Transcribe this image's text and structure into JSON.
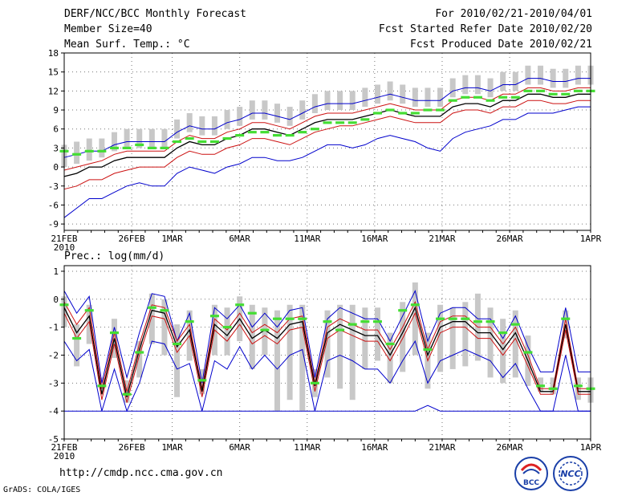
{
  "header": {
    "title": "DERF/NCC/BCC Monthly Forecast",
    "member_size": "Member Size=40",
    "variable": "Mean Surf. Temp.: °C",
    "period": "For 2010/02/21-2010/04/01",
    "started": "Fcst Started Refer Date 2010/02/20",
    "produced": "Fcst Produced Date 2010/02/21"
  },
  "footer": {
    "url": "http://cmdp.ncc.cma.gov.cn",
    "credit": "GrADS: COLA/IGES",
    "logo_bcc": "BCC",
    "logo_ncc": "NCC"
  },
  "colors": {
    "spread": "#c8c8c8",
    "observed": "#44dd33",
    "mean": "#000000",
    "inner": "#cc1111",
    "outer": "#0000cc"
  },
  "chart_data": [
    {
      "type": "line",
      "title": "Mean Surf. Temp.: °C",
      "ylim": [
        -10,
        18
      ],
      "yticks": [
        -9,
        -6,
        -3,
        0,
        3,
        6,
        9,
        12,
        15,
        18
      ],
      "xlabels": [
        "21FEB",
        "26FEB",
        "1MAR",
        "6MAR",
        "11MAR",
        "16MAR",
        "21MAR",
        "26MAR",
        "1APR"
      ],
      "xlabel_days": [
        0,
        5,
        8,
        13,
        18,
        23,
        28,
        33,
        39
      ],
      "year_label": "2010",
      "grid": true,
      "series": [
        {
          "name": "max",
          "values": [
            -8,
            -6.5,
            -5,
            -5,
            -4,
            -3,
            -2.5,
            -3,
            -3,
            -1,
            0,
            -0.5,
            -1,
            0,
            0.5,
            1.5,
            1.5,
            1,
            1,
            1.5,
            2.5,
            3.5,
            3.5,
            3,
            3.5,
            4.5,
            5,
            4.5,
            4,
            3,
            2.5,
            4.5,
            5.5,
            6,
            6.5,
            7.5,
            7.5,
            8.5,
            8.5,
            8.5,
            9,
            9.5,
            9.5
          ]
        },
        {
          "name": "upper_red",
          "values": [
            -3.5,
            -3,
            -2,
            -2,
            -1,
            -0.5,
            0,
            0,
            0,
            1.5,
            2.5,
            2,
            2,
            3,
            3.5,
            4.5,
            4.5,
            4,
            3.5,
            4.5,
            5.5,
            6,
            6.5,
            6.5,
            7,
            7.5,
            8,
            7.5,
            7,
            7,
            7,
            8.5,
            9,
            9,
            8.5,
            9.5,
            9.5,
            10.5,
            10.5,
            10,
            10,
            10.5,
            10.5
          ]
        },
        {
          "name": "mean",
          "values": [
            -1.5,
            -1,
            0,
            0,
            1,
            1.5,
            1.5,
            1.5,
            1.5,
            3,
            4,
            3.5,
            3.5,
            4.5,
            5,
            6,
            6,
            5.5,
            5,
            6,
            7,
            7.5,
            7.5,
            7.5,
            8,
            8.5,
            9,
            8.5,
            8,
            8,
            8,
            9.5,
            10,
            10,
            9.5,
            10.5,
            10.5,
            11.5,
            11.5,
            11,
            11,
            11.5,
            11.5
          ]
        },
        {
          "name": "lower_red",
          "values": [
            -0.5,
            0,
            0.5,
            1,
            2,
            2.5,
            2.5,
            2.5,
            2.5,
            4,
            5,
            4.5,
            4.5,
            5.5,
            6,
            7,
            7,
            6.5,
            6,
            7,
            8,
            8.5,
            8.5,
            8.5,
            9,
            9.5,
            10,
            9.5,
            9,
            9,
            9,
            10.5,
            11,
            11,
            10.5,
            11.5,
            11.5,
            12.5,
            12.5,
            12,
            12,
            12.5,
            12.5
          ]
        },
        {
          "name": "min",
          "values": [
            1.5,
            2,
            2.5,
            2.5,
            3.5,
            4,
            4,
            4,
            4,
            5.5,
            6.5,
            6,
            6,
            7,
            7.5,
            8.5,
            8.5,
            8,
            7.5,
            8.5,
            9.5,
            10,
            10,
            10,
            10.5,
            11,
            11.5,
            11,
            10.5,
            10.5,
            10.5,
            12,
            12.5,
            12.5,
            12,
            13,
            13,
            14,
            14,
            13.5,
            13.5,
            14,
            14
          ]
        }
      ],
      "observed": [
        2.5,
        2,
        2.5,
        2.5,
        3,
        3,
        3.5,
        3,
        3,
        4,
        4.5,
        4,
        4,
        4.5,
        5,
        5.5,
        5.5,
        5,
        5,
        5.5,
        6,
        7,
        7,
        7,
        7.5,
        8.5,
        9,
        8.5,
        8.5,
        9,
        9,
        10.5,
        11,
        11,
        10.5,
        11,
        11,
        12,
        12,
        11.5,
        11.5,
        12,
        12
      ],
      "spread_low": [
        0,
        0.5,
        1,
        1.5,
        2.5,
        3,
        3,
        3,
        3,
        4.5,
        5.5,
        5,
        5,
        6,
        6.5,
        7.5,
        7.5,
        7,
        6.5,
        7.5,
        8.5,
        9,
        9,
        9,
        9.5,
        10,
        10.5,
        10,
        9.5,
        9.5,
        9.5,
        11,
        11.5,
        11.5,
        11,
        12,
        12,
        13,
        13,
        12.5,
        12.5,
        13,
        13
      ],
      "spread_high": [
        3.5,
        4,
        4.5,
        4.5,
        5.5,
        6,
        6,
        6,
        6,
        7.5,
        8.5,
        8,
        8,
        9,
        9.5,
        10.5,
        10.5,
        10,
        9.5,
        10.5,
        11.5,
        12,
        12,
        12,
        12.5,
        13,
        13.5,
        13,
        12.5,
        12.5,
        12.5,
        14,
        14.5,
        14.5,
        14,
        15,
        15,
        16,
        16,
        15.5,
        15.5,
        16,
        16
      ]
    },
    {
      "type": "line",
      "title": "Prec.: log(mm/d)",
      "ylim": [
        -5,
        1.2
      ],
      "yticks": [
        -5,
        -4,
        -3,
        -2,
        -1,
        0,
        1
      ],
      "xlabels": [
        "21FEB",
        "26FEB",
        "1MAR",
        "6MAR",
        "11MAR",
        "16MAR",
        "21MAR",
        "26MAR",
        "1APR"
      ],
      "xlabel_days": [
        0,
        5,
        8,
        13,
        18,
        23,
        28,
        33,
        39
      ],
      "year_label": "2010",
      "grid": true,
      "series": [
        {
          "name": "max",
          "values": [
            0.3,
            -0.5,
            0.1,
            -3,
            -1,
            -2.8,
            -1.2,
            0.2,
            0.1,
            -1.5,
            -0.5,
            -3,
            -0.3,
            -0.7,
            -0.2,
            -1,
            -0.5,
            -1,
            -0.4,
            -0.3,
            -2.8,
            -0.7,
            -0.3,
            -0.5,
            -0.7,
            -0.7,
            -1.5,
            -0.6,
            0.3,
            -1.5,
            -0.5,
            -0.3,
            -0.3,
            -0.7,
            -0.7,
            -1.4,
            -0.6,
            -1.7,
            -2.6,
            -2.6,
            -0.3,
            -2.6,
            -2.6
          ]
        },
        {
          "name": "upper_red",
          "values": [
            -0.1,
            -0.9,
            -0.3,
            -3.2,
            -1.2,
            -3.3,
            -1.6,
            -0.2,
            -0.3,
            -1.5,
            -0.9,
            -3.2,
            -0.7,
            -1.1,
            -0.5,
            -1.2,
            -0.9,
            -1.2,
            -0.7,
            -0.6,
            -3,
            -1,
            -0.7,
            -0.9,
            -1.1,
            -1.1,
            -1.8,
            -1,
            -0.1,
            -1.8,
            -0.8,
            -0.6,
            -0.6,
            -1,
            -1,
            -1.6,
            -1,
            -2,
            -3.2,
            -3.2,
            -0.7,
            -3.2,
            -3.2
          ]
        },
        {
          "name": "mean",
          "values": [
            -0.3,
            -1.2,
            -0.6,
            -3.4,
            -1.4,
            -3.5,
            -1.8,
            -0.4,
            -0.5,
            -1.7,
            -1.1,
            -3.3,
            -0.9,
            -1.3,
            -0.7,
            -1.4,
            -1.1,
            -1.4,
            -0.9,
            -0.8,
            -3.1,
            -1.2,
            -0.9,
            -1.1,
            -1.3,
            -1.3,
            -2,
            -1.2,
            -0.3,
            -2,
            -1,
            -0.8,
            -0.8,
            -1.2,
            -1.2,
            -1.8,
            -1.2,
            -2.2,
            -3.3,
            -3.3,
            -0.9,
            -3.3,
            -3.3
          ]
        },
        {
          "name": "lower_red",
          "values": [
            -0.5,
            -1.4,
            -0.8,
            -3.6,
            -1.6,
            -3.7,
            -2,
            -0.6,
            -0.7,
            -1.9,
            -1.3,
            -3.5,
            -1.1,
            -1.5,
            -0.9,
            -1.6,
            -1.3,
            -1.6,
            -1.1,
            -1,
            -3.3,
            -1.4,
            -1.1,
            -1.3,
            -1.5,
            -1.5,
            -2.2,
            -1.4,
            -0.5,
            -2.2,
            -1.2,
            -1,
            -1,
            -1.4,
            -1.4,
            -2,
            -1.4,
            -2.4,
            -3.4,
            -3.4,
            -1.1,
            -3.4,
            -3.4
          ]
        },
        {
          "name": "min",
          "values": [
            -1.5,
            -2.2,
            -1.8,
            -4,
            -2.5,
            -4,
            -3,
            -1.5,
            -1.6,
            -2.5,
            -2.3,
            -4,
            -2.2,
            -2.5,
            -1.7,
            -2.5,
            -2,
            -2.5,
            -2,
            -1.8,
            -4,
            -2.2,
            -2,
            -2.2,
            -2.5,
            -2.5,
            -3,
            -2.2,
            -1.5,
            -3,
            -2.2,
            -2,
            -1.8,
            -2,
            -2.2,
            -2.8,
            -2.3,
            -3.2,
            -4,
            -4,
            -2,
            -4,
            -4
          ]
        },
        {
          "name": "bottom",
          "values": [
            -4,
            -4,
            -4,
            -4,
            -4,
            -4,
            -4,
            -4,
            -4,
            -4,
            -4,
            -4,
            -4,
            -4,
            -4,
            -4,
            -4,
            -4,
            -4,
            -4,
            -4,
            -4,
            -4,
            -4,
            -4,
            -4,
            -4,
            -4,
            -4,
            -3.8,
            -4,
            -4,
            -4,
            -4,
            -4,
            -4,
            -4,
            -4,
            -4,
            -4,
            -4,
            -4,
            -4
          ]
        }
      ],
      "observed": [
        -0.2,
        -1.4,
        -0.4,
        -3.1,
        -1.2,
        -3.4,
        -1.9,
        -0.3,
        -0.4,
        -1.6,
        -0.8,
        -2.9,
        -0.6,
        -1,
        -0.2,
        -0.5,
        -1.1,
        -0.7,
        -0.7,
        -0.7,
        -3,
        -0.8,
        -1.1,
        -0.9,
        -0.8,
        -0.8,
        -1.6,
        -0.4,
        -0.2,
        -1.8,
        -0.7,
        -0.7,
        -0.7,
        -0.8,
        -0.8,
        -1.2,
        -0.9,
        -1.9,
        -3.1,
        -3.2,
        -0.7,
        -3.1,
        -3.2
      ],
      "spread_low": [
        -1,
        -2.4,
        -1.6,
        -3.2,
        -2.1,
        -3.7,
        -2.8,
        -1.6,
        -2,
        -3.5,
        -2.2,
        -3.4,
        -2,
        -2,
        -1.5,
        -2.5,
        -2,
        -4,
        -3.6,
        -4,
        -3.5,
        -2.8,
        -3.2,
        -3.6,
        -2.5,
        -2.2,
        -3,
        -2.6,
        -2,
        -3.2,
        -2.6,
        -2.5,
        -2.4,
        -2.2,
        -2.8,
        -3,
        -2.8,
        -3.1,
        -3.3,
        -3.4,
        -1.4,
        -3.6,
        -3.7
      ],
      "spread_high": [
        0.1,
        -0.9,
        -0.2,
        -2.8,
        -0.7,
        -2.9,
        -1.5,
        0.2,
        0,
        -0.9,
        -0.4,
        -2.5,
        -0.2,
        -0.3,
        0.1,
        -0.2,
        -0.3,
        -0.4,
        -0.2,
        -0.2,
        -2.5,
        -0.4,
        -0.2,
        -0.2,
        -0.3,
        -0.3,
        -1.2,
        -0.1,
        0.6,
        -1.2,
        -0.2,
        -0.3,
        -0.1,
        0.2,
        -0.3,
        -0.7,
        -0.4,
        -1.3,
        -2.8,
        -2.8,
        -0.4,
        -2.8,
        -2.8
      ]
    }
  ]
}
